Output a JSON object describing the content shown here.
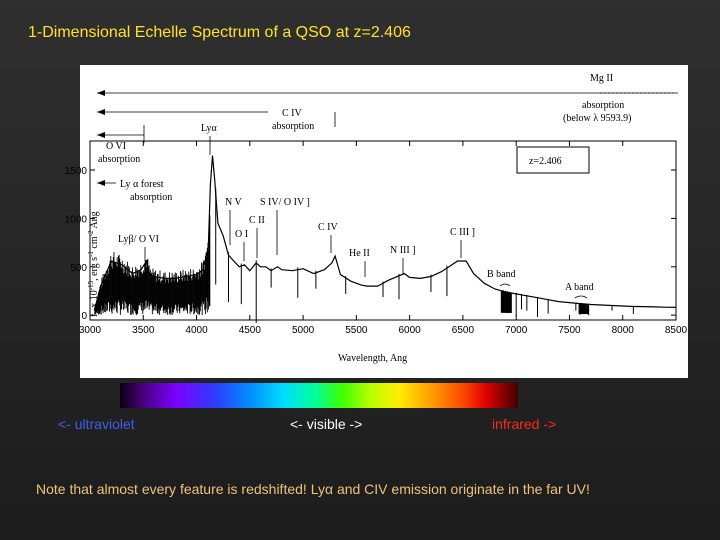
{
  "slide": {
    "title": "1-Dimensional Echelle Spectrum of a QSO at z=2.406",
    "footnote": "Note that almost every feature is redshifted!  Lyα and CIV emission originate in the far UV!"
  },
  "spectrum_bar": {
    "labels": {
      "uv": "<- ultraviolet",
      "visible": "<- visible ->",
      "ir": "infrared ->"
    }
  },
  "chart_data": {
    "type": "line",
    "xlabel": "Wavelength, Ang",
    "ylabel": "f_λ x 10^-15 , erg s^-1 cm^-2 Ang^-1",
    "ylabel_parts": {
      "f": "f",
      "sub": "λ",
      "mid": " x 10",
      "exp1": "-15",
      "rest": ", erg s",
      "exp2": "-1",
      "cm": " cm",
      "exp3": "-2",
      "end": " Ang"
    },
    "xlim": [
      3000,
      8500
    ],
    "ylim": [
      -50,
      1800
    ],
    "xticks": [
      3000,
      3500,
      4000,
      4500,
      5000,
      5500,
      6000,
      6500,
      7000,
      7500,
      8000,
      8500
    ],
    "yticks": [
      0,
      500,
      1000,
      1500
    ],
    "redshift_box": "z=2.406",
    "series": [
      {
        "x": [
          3040,
          3100,
          3200,
          3300,
          3400,
          3480,
          3530,
          3560,
          3600,
          3700,
          3800,
          3900,
          4000,
          4060,
          4110,
          4130,
          4150,
          4170,
          4200,
          4250,
          4300,
          4350,
          4400,
          4450,
          4500,
          4560,
          4600,
          4650,
          4700,
          4760,
          4800,
          4900,
          5000,
          5100,
          5200,
          5270,
          5300,
          5350,
          5450,
          5550,
          5600,
          5700,
          5800,
          5950,
          6000,
          6100,
          6200,
          6300,
          6450,
          6530,
          6600,
          6700,
          6800,
          6900,
          7000,
          7100,
          7200,
          7300,
          7400,
          7500,
          7600,
          7700,
          7800,
          7900,
          8000,
          8100,
          8200,
          8300,
          8400,
          8500
        ],
        "y": [
          50,
          300,
          560,
          520,
          430,
          470,
          560,
          420,
          400,
          380,
          380,
          400,
          420,
          470,
          700,
          1350,
          1650,
          1400,
          950,
          820,
          620,
          560,
          500,
          520,
          460,
          540,
          500,
          500,
          460,
          500,
          470,
          460,
          480,
          430,
          470,
          540,
          610,
          420,
          350,
          310,
          300,
          300,
          360,
          430,
          390,
          380,
          400,
          450,
          560,
          560,
          430,
          330,
          270,
          240,
          220,
          200,
          180,
          160,
          140,
          130,
          120,
          110,
          105,
          100,
          95,
          90,
          88,
          85,
          82,
          80
        ]
      }
    ],
    "emission_features": [
      {
        "label": "Lyα",
        "wavelength": 4140
      },
      {
        "label": "N V",
        "wavelength": 4220
      },
      {
        "label": "O I",
        "wavelength": 4440
      },
      {
        "label": "C II",
        "wavelength": 4550
      },
      {
        "label": "S IV/O IV]",
        "wavelength": 4760
      },
      {
        "label": "C IV",
        "wavelength": 5280
      },
      {
        "label": "He II",
        "wavelength": 5590
      },
      {
        "label": "N III]",
        "wavelength": 5960
      },
      {
        "label": "C III]",
        "wavelength": 6500
      },
      {
        "label": "Lyβ/O VI",
        "wavelength": 3530
      }
    ],
    "absorption_regions": [
      {
        "label": "O VI absorption",
        "x_end": 3530
      },
      {
        "label": "C IV absorption",
        "x_end": 5280
      },
      {
        "label": "Lyα forest absorption",
        "x_end": 4140
      },
      {
        "label": "Mg II absorption (below λ 9593.9)",
        "x_end": 8500
      }
    ],
    "telluric": [
      {
        "label": "B band",
        "wavelength": 6880
      },
      {
        "label": "A band",
        "wavelength": 7620
      }
    ],
    "annotations": {
      "mg2": "Mg II",
      "absorption": "absorption",
      "below": "(below λ 9593.9)",
      "civ": "C IV",
      "lya": "Lyα",
      "ovi": "O VI",
      "lya_forest": "Ly α  forest",
      "lybovi": "Lyβ/ O VI",
      "nv": "N V",
      "oi": "O I",
      "cii": "C II",
      "sivoiv": "S IV/ O IV ]",
      "civ2": "C IV",
      "heii": "He II",
      "niii": "N III ]",
      "ciii": "C III ]",
      "bband": "B band",
      "aband": "A band"
    }
  }
}
